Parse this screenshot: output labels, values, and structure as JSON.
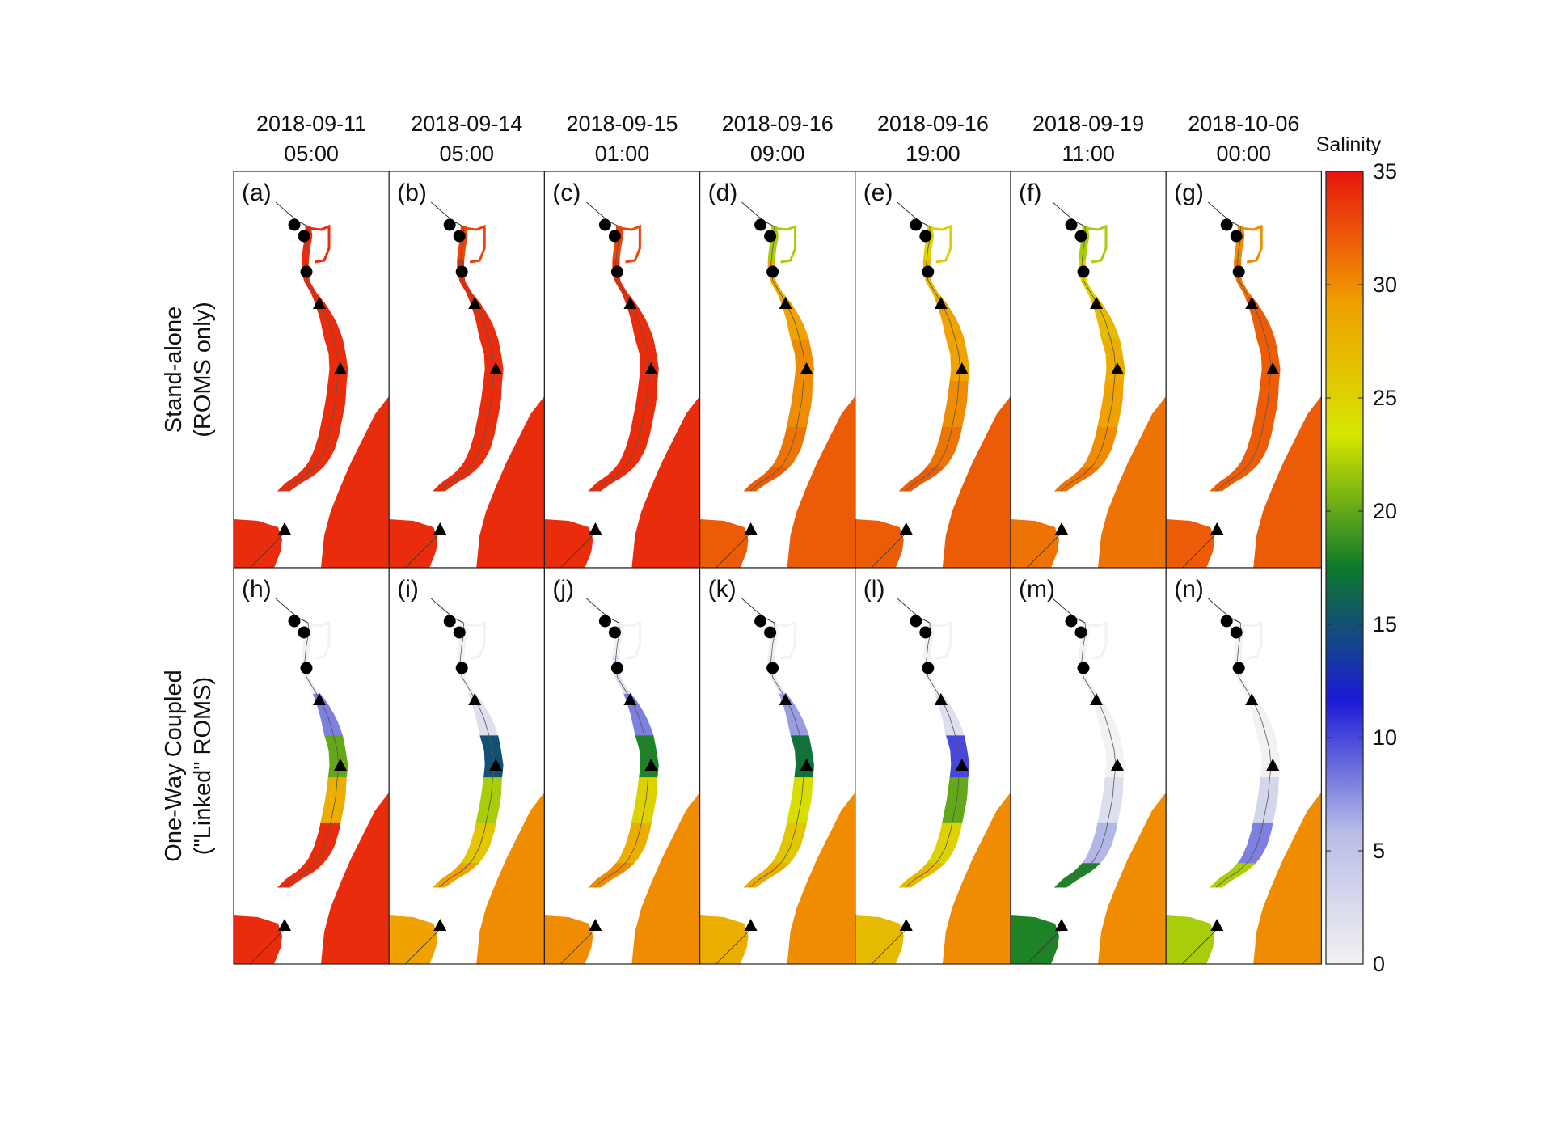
{
  "columns": [
    {
      "date": "2018-09-11",
      "time": "05:00"
    },
    {
      "date": "2018-09-14",
      "time": "05:00"
    },
    {
      "date": "2018-09-15",
      "time": "01:00"
    },
    {
      "date": "2018-09-16",
      "time": "09:00"
    },
    {
      "date": "2018-09-16",
      "time": "19:00"
    },
    {
      "date": "2018-09-19",
      "time": "11:00"
    },
    {
      "date": "2018-10-06",
      "time": "00:00"
    }
  ],
  "rows": [
    {
      "label_line1": "Stand-alone",
      "label_line2": "(ROMS only)"
    },
    {
      "label_line1": "One-Way Coupled",
      "label_line2": "(\"Linked\" ROMS)"
    }
  ],
  "panel_letters": [
    "(a)",
    "(b)",
    "(c)",
    "(d)",
    "(e)",
    "(f)",
    "(g)",
    "(h)",
    "(i)",
    "(j)",
    "(k)",
    "(l)",
    "(m)",
    "(n)"
  ],
  "colorbar": {
    "title": "Salinity",
    "min": 0,
    "max": 35,
    "ticks": [
      0,
      5,
      10,
      15,
      20,
      25,
      30,
      35
    ],
    "colormap": [
      "#f2f2f2",
      "#b8bce6",
      "#1a1ad6",
      "#0d7a2a",
      "#d6e600",
      "#f0a000",
      "#e8150e"
    ]
  },
  "salinity_north_to_south": [
    [
      34,
      34,
      34,
      34,
      34,
      34,
      34
    ],
    [
      33,
      34,
      34,
      34,
      34,
      34,
      34
    ],
    [
      33,
      34,
      34,
      34,
      34,
      34,
      34
    ],
    [
      22,
      28,
      29,
      30,
      30,
      31,
      32
    ],
    [
      25,
      27,
      29,
      29,
      30,
      31,
      32
    ],
    [
      22,
      25,
      27,
      28,
      29,
      30,
      31
    ],
    [
      30,
      31,
      32,
      32,
      32,
      32,
      32
    ],
    [
      0,
      0,
      8,
      20,
      28,
      34,
      34
    ],
    [
      0,
      0,
      2,
      15,
      22,
      26,
      29
    ],
    [
      0,
      2,
      8,
      18,
      25,
      28,
      30
    ],
    [
      0,
      1,
      7,
      17,
      24,
      26,
      28
    ],
    [
      0,
      0,
      2,
      10,
      20,
      25,
      27
    ],
    [
      0,
      0,
      0,
      0,
      2,
      6,
      18
    ],
    [
      0,
      0,
      0,
      0,
      3,
      8,
      22
    ]
  ]
}
